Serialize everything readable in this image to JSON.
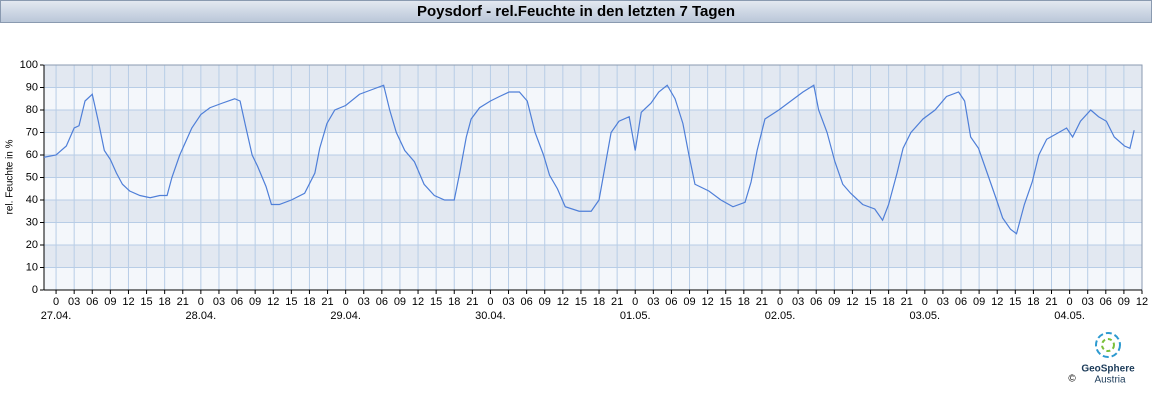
{
  "chart_data": {
    "type": "line",
    "title": "Poysdorf - rel.Feuchte in den letzten 7 Tagen",
    "y_label": "rel. Feuchte in %",
    "x": [
      -2,
      0,
      1.7,
      3,
      3.8,
      4.8,
      6,
      7,
      8,
      9,
      10,
      11,
      12.2,
      13.9,
      15.6,
      17.2,
      18.4,
      19.2,
      20.5,
      21.5,
      22.5,
      24,
      25.5,
      27.5,
      29.6,
      30.5,
      31.4,
      32.5,
      33.4,
      34.8,
      35.7,
      37,
      39,
      41.2,
      42.9,
      43.7,
      44.9,
      46.2,
      48,
      50.3,
      52.3,
      54.3,
      55.3,
      56.4,
      57.8,
      59.4,
      61,
      62.7,
      64.4,
      66,
      66.9,
      68,
      68.8,
      70.2,
      72,
      73.5,
      75.1,
      76.8,
      78.1,
      79.4,
      80.8,
      81.8,
      83.1,
      84.4,
      86.7,
      88.7,
      90,
      91,
      92,
      93.3,
      95,
      96,
      97,
      98.6,
      99.9,
      101.3,
      102.6,
      103.9,
      104.9,
      105.9,
      108.2,
      110.2,
      112.2,
      114.2,
      115.2,
      116.2,
      117.5,
      119.8,
      121.8,
      123.8,
      125.6,
      126.4,
      127.8,
      129.1,
      130.4,
      131.7,
      133.7,
      135.7,
      137,
      138,
      139.4,
      140.4,
      141.7,
      143.7,
      145.7,
      147.6,
      149.6,
      150.6,
      151.6,
      152.9,
      154.6,
      155.9,
      156.9,
      158.2,
      159.2,
      160.5,
      161.8,
      162.9,
      164.2,
      166.2,
      167.5,
      168.5,
      169.8,
      171.5,
      172.8,
      174.1,
      175.4,
      177.1,
      178,
      178.7
    ],
    "series": [
      {
        "name": "rel. Feuchte",
        "color": "#4f7fd8",
        "values": [
          59,
          60,
          64,
          72,
          73,
          84,
          87,
          75,
          62,
          58,
          52,
          47,
          44,
          42,
          41,
          42,
          42,
          50,
          60,
          66,
          72,
          78,
          81,
          83,
          85,
          84,
          73,
          60,
          55,
          46,
          38,
          38,
          40,
          43,
          52,
          63,
          74,
          80,
          82,
          87,
          89,
          91,
          80,
          70,
          62,
          57,
          47,
          42,
          40,
          40,
          52,
          68,
          76,
          81,
          84,
          86,
          88,
          88,
          84,
          70,
          60,
          51,
          45,
          37,
          35,
          35,
          40,
          55,
          70,
          75,
          77,
          62,
          79,
          83,
          88,
          91,
          85,
          74,
          60,
          47,
          44,
          40,
          37,
          39,
          48,
          62,
          76,
          80,
          84,
          88,
          91,
          80,
          70,
          57,
          47,
          43,
          38,
          36,
          31,
          38,
          52,
          63,
          70,
          76,
          80,
          86,
          88,
          84,
          68,
          63,
          50,
          40,
          32,
          27,
          25,
          38,
          48,
          60,
          67,
          70,
          72,
          68,
          75,
          80,
          77,
          75,
          68,
          64,
          63,
          71
        ]
      }
    ],
    "xlim": [
      -2,
      180
    ],
    "ylim": [
      0,
      100
    ],
    "yticks": [
      0,
      10,
      20,
      30,
      40,
      50,
      60,
      70,
      80,
      90,
      100
    ],
    "xticks": [
      {
        "value": 0,
        "label": "0"
      },
      {
        "value": 3,
        "label": "03"
      },
      {
        "value": 6,
        "label": "06"
      },
      {
        "value": 9,
        "label": "09"
      },
      {
        "value": 12,
        "label": "12"
      },
      {
        "value": 15,
        "label": "15"
      },
      {
        "value": 18,
        "label": "18"
      },
      {
        "value": 21,
        "label": "21"
      },
      {
        "value": 24,
        "label": "0"
      },
      {
        "value": 27,
        "label": "03"
      },
      {
        "value": 30,
        "label": "06"
      },
      {
        "value": 33,
        "label": "09"
      },
      {
        "value": 36,
        "label": "12"
      },
      {
        "value": 39,
        "label": "15"
      },
      {
        "value": 42,
        "label": "18"
      },
      {
        "value": 45,
        "label": "21"
      },
      {
        "value": 48,
        "label": "0"
      },
      {
        "value": 51,
        "label": "03"
      },
      {
        "value": 54,
        "label": "06"
      },
      {
        "value": 57,
        "label": "09"
      },
      {
        "value": 60,
        "label": "12"
      },
      {
        "value": 63,
        "label": "15"
      },
      {
        "value": 66,
        "label": "18"
      },
      {
        "value": 69,
        "label": "21"
      },
      {
        "value": 72,
        "label": "0"
      },
      {
        "value": 75,
        "label": "03"
      },
      {
        "value": 78,
        "label": "06"
      },
      {
        "value": 81,
        "label": "09"
      },
      {
        "value": 84,
        "label": "12"
      },
      {
        "value": 87,
        "label": "15"
      },
      {
        "value": 90,
        "label": "18"
      },
      {
        "value": 93,
        "label": "21"
      },
      {
        "value": 96,
        "label": "0"
      },
      {
        "value": 99,
        "label": "03"
      },
      {
        "value": 102,
        "label": "06"
      },
      {
        "value": 105,
        "label": "09"
      },
      {
        "value": 108,
        "label": "12"
      },
      {
        "value": 111,
        "label": "15"
      },
      {
        "value": 114,
        "label": "18"
      },
      {
        "value": 117,
        "label": "21"
      },
      {
        "value": 120,
        "label": "0"
      },
      {
        "value": 123,
        "label": "03"
      },
      {
        "value": 126,
        "label": "06"
      },
      {
        "value": 129,
        "label": "09"
      },
      {
        "value": 132,
        "label": "12"
      },
      {
        "value": 135,
        "label": "15"
      },
      {
        "value": 138,
        "label": "18"
      },
      {
        "value": 141,
        "label": "21"
      },
      {
        "value": 144,
        "label": "0"
      },
      {
        "value": 147,
        "label": "03"
      },
      {
        "value": 150,
        "label": "06"
      },
      {
        "value": 153,
        "label": "09"
      },
      {
        "value": 156,
        "label": "12"
      },
      {
        "value": 159,
        "label": "15"
      },
      {
        "value": 162,
        "label": "18"
      },
      {
        "value": 165,
        "label": "21"
      },
      {
        "value": 168,
        "label": "0"
      },
      {
        "value": 171,
        "label": "03"
      },
      {
        "value": 174,
        "label": "06"
      },
      {
        "value": 177,
        "label": "09"
      },
      {
        "value": 180,
        "label": "12"
      }
    ],
    "date_labels": [
      {
        "value": 0,
        "label": "27.04."
      },
      {
        "value": 24,
        "label": "28.04."
      },
      {
        "value": 48,
        "label": "29.04."
      },
      {
        "value": 72,
        "label": "30.04."
      },
      {
        "value": 96,
        "label": "01.05."
      },
      {
        "value": 120,
        "label": "02.05."
      },
      {
        "value": 144,
        "label": "03.05."
      },
      {
        "value": 168,
        "label": "04.05."
      }
    ],
    "grid": true
  },
  "logo": {
    "name": "GeoSphere",
    "sub": "Austria",
    "copyright": "©"
  }
}
